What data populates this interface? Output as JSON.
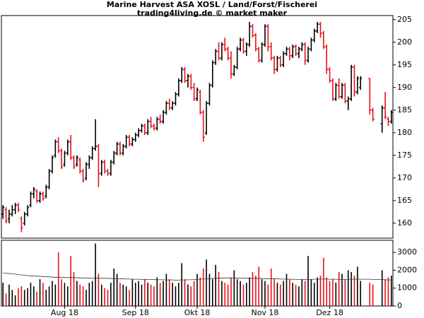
{
  "chart_data": [
    {
      "type": "ohlc",
      "title": "Marine Harvest ASA XOSL / Land/Forst/Fischerei",
      "subtitle": "trading4living.de © market maker",
      "up_color": "#000000",
      "down_color": "#e8101a",
      "xlim": [
        -0.5,
        126.5
      ],
      "ylim": [
        156.7,
        205.9
      ],
      "yticks": [
        160,
        165,
        170,
        175,
        180,
        185,
        190,
        195,
        200,
        205
      ],
      "ohlc": [
        [
          162,
          164,
          161,
          163.5
        ],
        [
          163,
          163.5,
          160,
          160.5
        ],
        [
          161,
          163,
          160,
          162
        ],
        [
          162,
          164,
          161.5,
          163
        ],
        [
          163,
          164.5,
          162,
          164
        ],
        [
          164,
          164.5,
          162.5,
          163
        ],
        [
          161,
          161.5,
          158,
          159
        ],
        [
          160,
          162.5,
          159.5,
          162
        ],
        [
          162,
          164,
          161.5,
          163.5
        ],
        [
          164,
          167,
          163.5,
          166.5
        ],
        [
          166.5,
          168,
          165.5,
          167.5
        ],
        [
          167,
          167.5,
          164.5,
          165
        ],
        [
          165,
          167,
          164.5,
          166.5
        ],
        [
          166.5,
          167,
          165,
          165.5
        ],
        [
          166,
          168.5,
          165.5,
          168
        ],
        [
          168,
          172,
          167.5,
          171.5
        ],
        [
          171.5,
          175,
          171,
          174.5
        ],
        [
          175,
          178.5,
          174.5,
          178
        ],
        [
          178,
          179,
          175.5,
          176
        ],
        [
          176,
          176.5,
          172,
          172.5
        ],
        [
          173,
          176,
          172.5,
          175.5
        ],
        [
          175.5,
          178.5,
          175,
          178
        ],
        [
          178,
          179.5,
          174,
          174.5
        ],
        [
          174.5,
          175,
          172,
          172.5
        ],
        [
          173,
          175,
          172.5,
          174.5
        ],
        [
          174,
          174.5,
          171,
          171.5
        ],
        [
          171.5,
          172,
          169,
          169.5
        ],
        [
          170,
          173.5,
          169.5,
          173
        ],
        [
          173,
          175,
          172,
          174.5
        ],
        [
          174.5,
          177,
          174,
          176.5
        ],
        [
          176.5,
          183,
          176,
          177
        ],
        [
          177,
          177.5,
          168,
          171
        ],
        [
          171,
          174,
          170.5,
          173.5
        ],
        [
          173.5,
          174,
          171,
          171.5
        ],
        [
          171.5,
          172,
          170.5,
          171
        ],
        [
          171,
          174,
          170.5,
          173.5
        ],
        [
          173.5,
          176,
          173,
          175.5
        ],
        [
          175.5,
          178,
          175,
          177.5
        ],
        [
          177.5,
          178,
          175,
          175.5
        ],
        [
          175.5,
          177.5,
          175,
          177
        ],
        [
          177,
          179.5,
          176.5,
          179
        ],
        [
          179,
          179.5,
          177,
          177.5
        ],
        [
          177.5,
          179,
          177,
          178.5
        ],
        [
          178.5,
          180,
          178,
          179.5
        ],
        [
          179.5,
          181,
          179,
          180.5
        ],
        [
          180.5,
          182,
          180,
          181.5
        ],
        [
          181.5,
          182,
          179.5,
          180
        ],
        [
          180,
          183,
          179.5,
          182.5
        ],
        [
          182.5,
          183.5,
          181,
          181.5
        ],
        [
          181.5,
          182,
          180.5,
          181
        ],
        [
          181,
          183.5,
          180.5,
          183
        ],
        [
          183,
          184,
          182,
          182.5
        ],
        [
          182.5,
          185,
          182,
          184.5
        ],
        [
          184.5,
          187,
          184,
          186.5
        ],
        [
          186.5,
          187.5,
          185,
          185.5
        ],
        [
          185.5,
          187,
          185,
          186.5
        ],
        [
          186.5,
          189,
          186,
          188.5
        ],
        [
          188.5,
          192,
          188,
          191.5
        ],
        [
          191.5,
          194.5,
          191,
          194
        ],
        [
          194,
          194.5,
          191,
          191.5
        ],
        [
          191.5,
          193,
          190,
          192.5
        ],
        [
          192.5,
          193,
          189.5,
          190
        ],
        [
          190,
          191,
          187,
          187.5
        ],
        [
          187.5,
          190,
          187,
          189.5
        ],
        [
          189,
          189.5,
          184,
          184.5
        ],
        [
          184.5,
          185,
          178,
          179
        ],
        [
          180,
          187,
          179.5,
          186.5
        ],
        [
          186.5,
          191,
          186,
          190.5
        ],
        [
          190.5,
          196,
          190,
          195.5
        ],
        [
          195.5,
          198.5,
          195,
          198
        ],
        [
          198,
          200,
          196,
          196.5
        ],
        [
          196.5,
          200,
          196,
          199.5
        ],
        [
          199.5,
          201,
          198,
          198.5
        ],
        [
          198.5,
          199,
          196,
          196.5
        ],
        [
          196.5,
          198,
          192,
          193
        ],
        [
          193,
          195,
          192.5,
          194.5
        ],
        [
          194.5,
          199,
          194,
          198.5
        ],
        [
          198.5,
          201,
          198,
          200.5
        ],
        [
          200.5,
          201,
          197.5,
          198
        ],
        [
          198,
          200,
          197,
          199.5
        ],
        [
          199.5,
          204.5,
          199,
          203.5
        ],
        [
          203.5,
          204,
          201,
          201.5
        ],
        [
          201.5,
          202,
          198,
          198.5
        ],
        [
          198.5,
          199,
          195.5,
          196
        ],
        [
          196,
          200,
          195.5,
          199.5
        ],
        [
          199.5,
          204,
          199,
          203.5
        ],
        [
          203.5,
          204,
          198,
          199
        ],
        [
          199,
          200,
          196,
          196.5
        ],
        [
          196.5,
          197,
          193,
          194
        ],
        [
          194,
          197,
          193.5,
          196.5
        ],
        [
          196.5,
          197,
          194.5,
          195
        ],
        [
          195,
          198,
          194.5,
          197.5
        ],
        [
          197.5,
          199,
          197,
          198.5
        ],
        [
          198.5,
          199,
          196,
          197
        ],
        [
          197,
          199.5,
          196.5,
          199
        ],
        [
          199,
          199.5,
          197,
          197.5
        ],
        [
          197.5,
          199,
          196.5,
          198.5
        ],
        [
          198.5,
          200,
          198,
          199.5
        ],
        [
          199.5,
          200,
          195,
          196
        ],
        [
          196,
          199,
          195.5,
          198.5
        ],
        [
          198.5,
          201,
          198,
          200.5
        ],
        [
          200.5,
          203,
          200,
          202.5
        ],
        [
          202.5,
          204.5,
          202,
          204
        ],
        [
          204,
          204.5,
          201,
          202
        ],
        [
          202,
          202.5,
          198.5,
          199
        ],
        [
          199,
          199.5,
          193,
          194
        ],
        [
          194,
          194.5,
          191,
          191.5
        ],
        [
          191.5,
          192,
          187,
          187.5
        ],
        [
          187.5,
          191,
          187,
          190.5
        ],
        [
          190.5,
          192,
          187.5,
          188
        ],
        [
          188,
          191,
          187.5,
          190.5
        ],
        [
          190.5,
          191,
          186.5,
          187
        ],
        [
          187,
          188,
          185,
          187.5
        ],
        [
          187.5,
          195,
          187,
          194.5
        ],
        [
          194.5,
          195,
          188,
          189
        ],
        [
          189,
          192.5,
          188.5,
          192
        ],
        [
          190,
          192.5,
          189.5,
          192
        ],
        null,
        null,
        [
          192,
          192,
          184,
          185
        ],
        [
          185,
          185.5,
          182.5,
          183
        ],
        null,
        null,
        [
          182,
          186,
          180,
          185.5
        ],
        [
          185.5,
          189,
          183,
          183.5
        ],
        [
          183,
          183.5,
          181.5,
          182.5
        ],
        [
          182.5,
          185,
          182,
          184.5
        ]
      ]
    },
    {
      "type": "volume",
      "up_color": "#000000",
      "down_color": "#e8101a",
      "ma_color": "#333333",
      "xlim": [
        -0.5,
        126.5
      ],
      "ylim": [
        0,
        3680
      ],
      "yticks": [
        0,
        1000,
        2000,
        3000
      ],
      "xticks": [
        {
          "value": 20,
          "label": "Aug 18"
        },
        {
          "value": 43,
          "label": "Sep 18"
        },
        {
          "value": 63,
          "label": "Okt 18"
        },
        {
          "value": 85,
          "label": "Nov 18"
        },
        {
          "value": 106,
          "label": "Dez 18"
        }
      ],
      "values": [
        1300,
        700,
        1200,
        900,
        600,
        1000,
        1100,
        900,
        1000,
        1300,
        1100,
        800,
        1500,
        1300,
        900,
        1100,
        1400,
        1200,
        3000,
        1500,
        1300,
        1100,
        2800,
        1900,
        1400,
        1200,
        1100,
        900,
        1300,
        1400,
        3500,
        1800,
        1200,
        1000,
        900,
        1300,
        2100,
        1800,
        1300,
        1200,
        1100,
        900,
        1500,
        1300,
        1400,
        1200,
        1500,
        1300,
        1200,
        1100,
        1600,
        1300,
        1400,
        1800,
        1500,
        1300,
        1100,
        1300,
        2400,
        1500,
        1200,
        1100,
        1400,
        1800,
        1600,
        2100,
        2600,
        1800,
        1500,
        2300,
        1900,
        1400,
        1300,
        1200,
        1600,
        2000,
        1500,
        1400,
        1200,
        1300,
        1600,
        1900,
        1700,
        2200,
        1500,
        1400,
        1200,
        2100,
        1500,
        1300,
        1200,
        1400,
        1800,
        1500,
        1300,
        1200,
        1100,
        1500,
        1400,
        2800,
        1500,
        1300,
        1600,
        1700,
        2700,
        1600,
        1400,
        1500,
        1300,
        1900,
        1800,
        1500,
        2000,
        1900,
        1700,
        2200,
        1400,
        null,
        null,
        1300,
        1200,
        null,
        null,
        2000,
        1500,
        1600,
        1700
      ],
      "ma_values": [
        1850,
        1840,
        1820,
        1800,
        1780,
        1760,
        1740,
        1720,
        1700,
        1690,
        1680,
        1670,
        1660,
        1650,
        1640,
        1630,
        1620,
        1610,
        1600,
        1600,
        1600,
        1590,
        1590,
        1580,
        1580,
        1570,
        1570,
        1560,
        1560,
        1550,
        1560,
        1560,
        1550,
        1550,
        1540,
        1540,
        1530,
        1530,
        1520,
        1520,
        1510,
        1510,
        1500,
        1500,
        1500,
        1490,
        1490,
        1480,
        1480,
        1480,
        1470,
        1470,
        1470,
        1460,
        1460,
        1460,
        1450,
        1450,
        1460,
        1460,
        1470,
        1470,
        1480,
        1490,
        1500,
        1510,
        1520,
        1530,
        1540,
        1550,
        1560,
        1560,
        1570,
        1570,
        1570,
        1570,
        1560,
        1560,
        1550,
        1550,
        1550,
        1550,
        1540,
        1540,
        1540,
        1530,
        1530,
        1530,
        1520,
        1520,
        1510,
        1510,
        1500,
        1500,
        1500,
        1490,
        1490,
        1480,
        1480,
        1490,
        1490,
        1500,
        1500,
        1510,
        1510,
        1510,
        1500,
        1500,
        1500,
        1490,
        1490,
        1490,
        1500,
        1500,
        1500,
        1510,
        1500,
        1500,
        1500,
        1500,
        1490,
        1490,
        1480,
        1480,
        1470,
        1460,
        1450
      ]
    }
  ]
}
